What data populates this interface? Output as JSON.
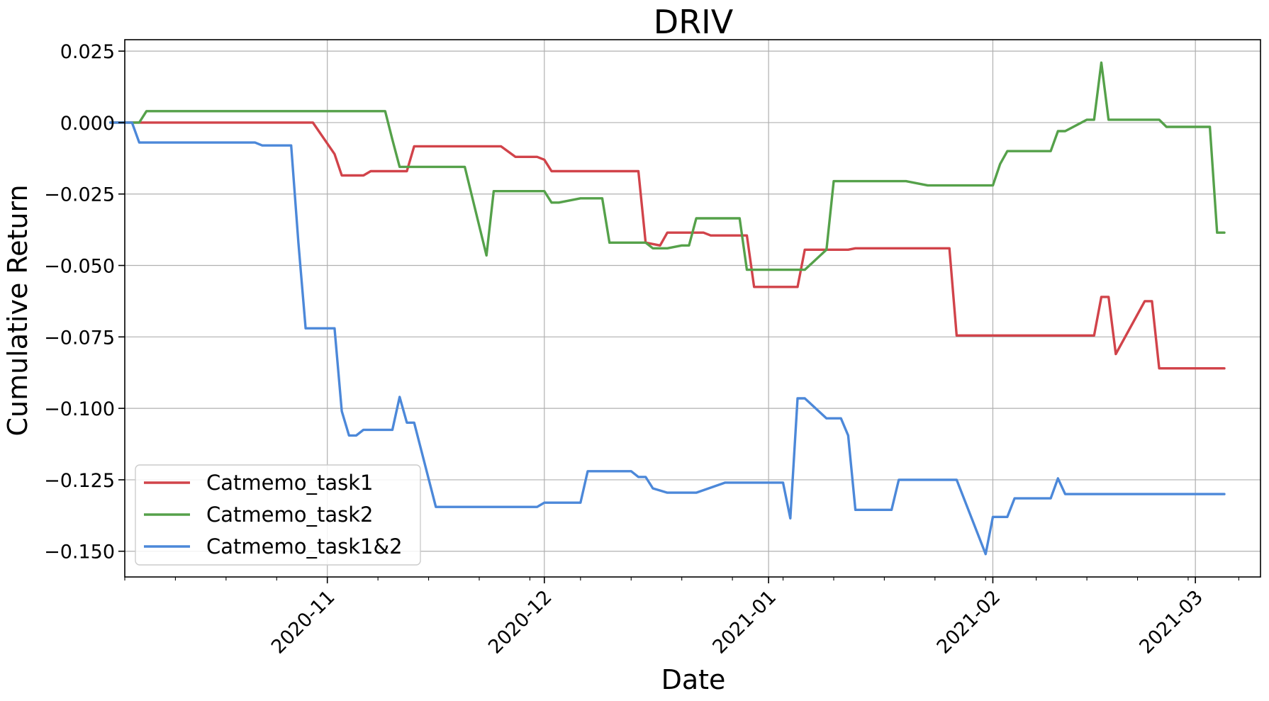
{
  "chart_data": {
    "type": "line",
    "title": "DRIV",
    "xlabel": "Date",
    "ylabel": "Cumulative Return",
    "xlim": [
      "2020-10-04",
      "2021-03-10"
    ],
    "ylim": [
      -0.159,
      0.029
    ],
    "yticks": [
      0.025,
      0.0,
      -0.025,
      -0.05,
      -0.075,
      -0.1,
      -0.125,
      -0.15
    ],
    "ytick_labels": [
      "0.025",
      "0.000",
      "−0.025",
      "−0.050",
      "−0.075",
      "−0.100",
      "−0.125",
      "−0.150"
    ],
    "xticks": [
      "2020-11-01",
      "2020-12-01",
      "2021-01-01",
      "2021-02-01",
      "2021-03-01"
    ],
    "xtick_labels": [
      "2020-11",
      "2020-12",
      "2021-01",
      "2021-02",
      "2021-03"
    ],
    "grid": true,
    "legend_position": "lower-left",
    "series": [
      {
        "name": "Catmemo_task1",
        "color": "#d1434a",
        "points": [
          [
            "2020-10-02",
            0.0
          ],
          [
            "2020-10-30",
            0.0
          ],
          [
            "2020-11-02",
            -0.011
          ],
          [
            "2020-11-03",
            -0.0185
          ],
          [
            "2020-11-06",
            -0.0185
          ],
          [
            "2020-11-07",
            -0.017
          ],
          [
            "2020-11-12",
            -0.017
          ],
          [
            "2020-11-13",
            -0.0083
          ],
          [
            "2020-11-25",
            -0.0083
          ],
          [
            "2020-11-27",
            -0.012
          ],
          [
            "2020-11-30",
            -0.012
          ],
          [
            "2020-12-01",
            -0.013
          ],
          [
            "2020-12-02",
            -0.017
          ],
          [
            "2020-12-14",
            -0.017
          ],
          [
            "2020-12-15",
            -0.042
          ],
          [
            "2020-12-17",
            -0.043
          ],
          [
            "2020-12-18",
            -0.0385
          ],
          [
            "2020-12-23",
            -0.0385
          ],
          [
            "2020-12-24",
            -0.0395
          ],
          [
            "2020-12-29",
            -0.0395
          ],
          [
            "2020-12-30",
            -0.0575
          ],
          [
            "2021-01-05",
            -0.0575
          ],
          [
            "2021-01-06",
            -0.0445
          ],
          [
            "2021-01-12",
            -0.0445
          ],
          [
            "2021-01-13",
            -0.044
          ],
          [
            "2021-01-26",
            -0.044
          ],
          [
            "2021-01-27",
            -0.0745
          ],
          [
            "2021-02-15",
            -0.0745
          ],
          [
            "2021-02-16",
            -0.061
          ],
          [
            "2021-02-17",
            -0.061
          ],
          [
            "2021-02-18",
            -0.081
          ],
          [
            "2021-02-22",
            -0.0625
          ],
          [
            "2021-02-23",
            -0.0625
          ],
          [
            "2021-02-24",
            -0.086
          ],
          [
            "2021-03-05",
            -0.086
          ]
        ]
      },
      {
        "name": "Catmemo_task2",
        "color": "#55a14a",
        "points": [
          [
            "2020-10-02",
            0.0
          ],
          [
            "2020-10-06",
            0.0
          ],
          [
            "2020-10-07",
            0.004
          ],
          [
            "2020-11-09",
            0.004
          ],
          [
            "2020-11-10",
            -0.006
          ],
          [
            "2020-11-11",
            -0.0155
          ],
          [
            "2020-11-20",
            -0.0155
          ],
          [
            "2020-11-23",
            -0.0465
          ],
          [
            "2020-11-24",
            -0.024
          ],
          [
            "2020-12-01",
            -0.024
          ],
          [
            "2020-12-02",
            -0.028
          ],
          [
            "2020-12-03",
            -0.028
          ],
          [
            "2020-12-06",
            -0.0265
          ],
          [
            "2020-12-09",
            -0.0265
          ],
          [
            "2020-12-10",
            -0.042
          ],
          [
            "2020-12-15",
            -0.042
          ],
          [
            "2020-12-16",
            -0.044
          ],
          [
            "2020-12-18",
            -0.044
          ],
          [
            "2020-12-20",
            -0.043
          ],
          [
            "2020-12-21",
            -0.043
          ],
          [
            "2020-12-22",
            -0.0335
          ],
          [
            "2020-12-28",
            -0.0335
          ],
          [
            "2020-12-29",
            -0.0515
          ],
          [
            "2021-01-06",
            -0.0515
          ],
          [
            "2021-01-09",
            -0.0445
          ],
          [
            "2021-01-10",
            -0.0205
          ],
          [
            "2021-01-20",
            -0.0205
          ],
          [
            "2021-01-23",
            -0.022
          ],
          [
            "2021-02-01",
            -0.022
          ],
          [
            "2021-02-02",
            -0.0145
          ],
          [
            "2021-02-03",
            -0.01
          ],
          [
            "2021-02-09",
            -0.01
          ],
          [
            "2021-02-10",
            -0.003
          ],
          [
            "2021-02-11",
            -0.003
          ],
          [
            "2021-02-14",
            0.001
          ],
          [
            "2021-02-15",
            0.001
          ],
          [
            "2021-02-16",
            0.021
          ],
          [
            "2021-02-17",
            0.001
          ],
          [
            "2021-02-24",
            0.001
          ],
          [
            "2021-02-25",
            -0.0015
          ],
          [
            "2021-03-03",
            -0.0015
          ],
          [
            "2021-03-04",
            -0.0385
          ],
          [
            "2021-03-05",
            -0.0385
          ]
        ]
      },
      {
        "name": "Catmemo_task1&2",
        "color": "#4c88d9",
        "points": [
          [
            "2020-10-02",
            0.0
          ],
          [
            "2020-10-05",
            0.0
          ],
          [
            "2020-10-06",
            -0.007
          ],
          [
            "2020-10-22",
            -0.007
          ],
          [
            "2020-10-23",
            -0.008
          ],
          [
            "2020-10-27",
            -0.008
          ],
          [
            "2020-10-28",
            -0.042
          ],
          [
            "2020-10-29",
            -0.072
          ],
          [
            "2020-11-02",
            -0.072
          ],
          [
            "2020-11-03",
            -0.101
          ],
          [
            "2020-11-04",
            -0.1095
          ],
          [
            "2020-11-05",
            -0.1095
          ],
          [
            "2020-11-06",
            -0.1075
          ],
          [
            "2020-11-10",
            -0.1075
          ],
          [
            "2020-11-11",
            -0.096
          ],
          [
            "2020-11-12",
            -0.105
          ],
          [
            "2020-11-13",
            -0.105
          ],
          [
            "2020-11-16",
            -0.1345
          ],
          [
            "2020-11-30",
            -0.1345
          ],
          [
            "2020-12-01",
            -0.133
          ],
          [
            "2020-12-06",
            -0.133
          ],
          [
            "2020-12-07",
            -0.122
          ],
          [
            "2020-12-13",
            -0.122
          ],
          [
            "2020-12-14",
            -0.124
          ],
          [
            "2020-12-15",
            -0.124
          ],
          [
            "2020-12-16",
            -0.128
          ],
          [
            "2020-12-18",
            -0.1295
          ],
          [
            "2020-12-22",
            -0.1295
          ],
          [
            "2020-12-26",
            -0.126
          ],
          [
            "2021-01-03",
            -0.126
          ],
          [
            "2021-01-04",
            -0.1385
          ],
          [
            "2021-01-05",
            -0.0965
          ],
          [
            "2021-01-06",
            -0.0965
          ],
          [
            "2021-01-09",
            -0.1035
          ],
          [
            "2021-01-11",
            -0.1035
          ],
          [
            "2021-01-12",
            -0.1095
          ],
          [
            "2021-01-13",
            -0.1355
          ],
          [
            "2021-01-18",
            -0.1355
          ],
          [
            "2021-01-19",
            -0.125
          ],
          [
            "2021-01-27",
            -0.125
          ],
          [
            "2021-01-31",
            -0.151
          ],
          [
            "2021-02-01",
            -0.138
          ],
          [
            "2021-02-03",
            -0.138
          ],
          [
            "2021-02-04",
            -0.1315
          ],
          [
            "2021-02-09",
            -0.1315
          ],
          [
            "2021-02-10",
            -0.1245
          ],
          [
            "2021-02-11",
            -0.13
          ],
          [
            "2021-03-05",
            -0.13
          ]
        ]
      }
    ]
  }
}
